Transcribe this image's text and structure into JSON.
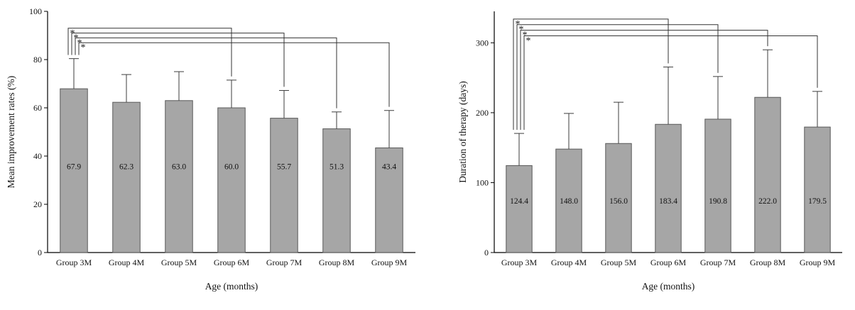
{
  "page": {
    "background": "#ffffff"
  },
  "chart_data": [
    {
      "id": "mean-improvement-rates",
      "type": "bar",
      "title": "",
      "xlabel": "Age (months)",
      "ylabel": "Mean improvement rates (%)",
      "categories": [
        "Group 3M",
        "Group 4M",
        "Group 5M",
        "Group 6M",
        "Group 7M",
        "Group 8M",
        "Group 9M"
      ],
      "values": [
        67.9,
        62.3,
        63.0,
        60.0,
        55.7,
        51.3,
        43.4
      ],
      "value_labels": [
        "67.9",
        "62.3",
        "63.0",
        "60.0",
        "55.7",
        "51.3",
        "43.4"
      ],
      "errors_up": [
        12.5,
        11.5,
        12.0,
        11.5,
        11.5,
        7.0,
        15.5
      ],
      "ylim": [
        0,
        100
      ],
      "yticks": [
        0,
        20,
        40,
        60,
        80,
        100
      ],
      "grid": false,
      "legend": false,
      "bar_color": "#a6a6a6",
      "bar_border": "#595959",
      "label_y": 34.5,
      "brackets": [
        {
          "from": 0,
          "to": 3,
          "y": 93,
          "label": "*"
        },
        {
          "from": 0,
          "to": 4,
          "y": 91,
          "label": "*"
        },
        {
          "from": 0,
          "to": 5,
          "y": 89,
          "label": "*"
        },
        {
          "from": 0,
          "to": 6,
          "y": 87,
          "label": "*"
        }
      ]
    },
    {
      "id": "duration-of-therapy",
      "type": "bar",
      "title": "",
      "xlabel": "Age (months)",
      "ylabel": "Duration of therapy (days)",
      "categories": [
        "Group 3M",
        "Group 4M",
        "Group 5M",
        "Group 6M",
        "Group 7M",
        "Group 8M",
        "Group 9M"
      ],
      "values": [
        124.4,
        148.0,
        156.0,
        183.4,
        190.8,
        222.0,
        179.5
      ],
      "value_labels": [
        "124.4",
        "148.0",
        "156.0",
        "183.4",
        "190.8",
        "222.0",
        "179.5"
      ],
      "errors_up": [
        46,
        51,
        59,
        82,
        61,
        68,
        51
      ],
      "ylim": [
        0,
        345
      ],
      "yticks": [
        0,
        100,
        200,
        300
      ],
      "grid": false,
      "legend": false,
      "bar_color": "#a6a6a6",
      "bar_border": "#595959",
      "label_y": 70,
      "brackets": [
        {
          "from": 0,
          "to": 3,
          "y": 334,
          "label": "*"
        },
        {
          "from": 0,
          "to": 4,
          "y": 326,
          "label": "*"
        },
        {
          "from": 0,
          "to": 5,
          "y": 318,
          "label": "*"
        },
        {
          "from": 0,
          "to": 6,
          "y": 310,
          "label": "*"
        }
      ]
    }
  ]
}
